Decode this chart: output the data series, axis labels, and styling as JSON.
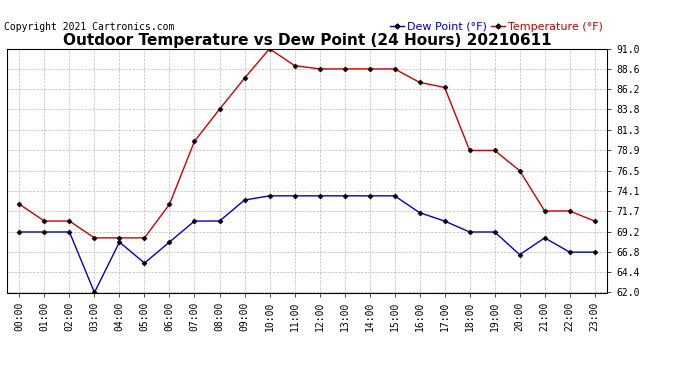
{
  "title": "Outdoor Temperature vs Dew Point (24 Hours) 20210611",
  "copyright": "Copyright 2021 Cartronics.com",
  "legend_dew": "Dew Point (°F)",
  "legend_temp": "Temperature (°F)",
  "x_labels": [
    "00:00",
    "01:00",
    "02:00",
    "03:00",
    "04:00",
    "05:00",
    "06:00",
    "07:00",
    "08:00",
    "09:00",
    "10:00",
    "11:00",
    "12:00",
    "13:00",
    "14:00",
    "15:00",
    "16:00",
    "17:00",
    "18:00",
    "19:00",
    "20:00",
    "21:00",
    "22:00",
    "23:00"
  ],
  "temperature": [
    72.5,
    70.5,
    70.5,
    68.5,
    68.5,
    68.5,
    72.5,
    80.0,
    83.8,
    87.5,
    91.0,
    89.0,
    88.6,
    88.6,
    88.6,
    88.6,
    87.0,
    86.4,
    78.9,
    78.9,
    76.5,
    71.7,
    71.7,
    70.5
  ],
  "dew_point": [
    69.2,
    69.2,
    69.2,
    62.0,
    68.0,
    65.5,
    68.0,
    70.5,
    70.5,
    73.0,
    73.5,
    73.5,
    73.5,
    73.5,
    73.5,
    73.5,
    71.5,
    70.5,
    69.2,
    69.2,
    66.5,
    68.5,
    66.8,
    66.8
  ],
  "temp_color": "#cc0000",
  "dew_color": "#0000cc",
  "ylim_min": 62.0,
  "ylim_max": 91.0,
  "yticks": [
    62.0,
    64.4,
    66.8,
    69.2,
    71.7,
    74.1,
    76.5,
    78.9,
    81.3,
    83.8,
    86.2,
    88.6,
    91.0
  ],
  "bg_color": "#ffffff",
  "grid_color": "#aaaaaa",
  "title_fontsize": 11,
  "tick_fontsize": 7,
  "legend_fontsize": 8,
  "copyright_fontsize": 7
}
